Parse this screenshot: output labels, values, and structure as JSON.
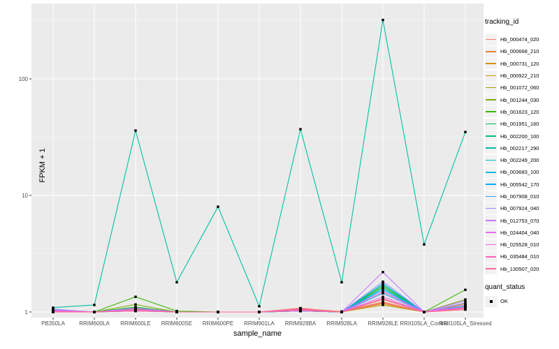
{
  "figure": {
    "background": "#FFFFFF",
    "panel_background": "#EBEBEB",
    "grid_major_color": "#FFFFFF",
    "grid_minor_color": "#F5F5F5",
    "axis_text_color": "#4D4D4D",
    "tick_mark_color": "#333333",
    "point_color": "#000000",
    "legend_key_fill": "#F2F2F2"
  },
  "legend": {
    "tracking_title": "tracking_id",
    "quant_title": "quant_status",
    "quant_items": [
      {
        "label": "OK",
        "symbol": "filled-square"
      }
    ]
  },
  "chart_data": {
    "type": "line",
    "title": "",
    "xlabel": "sample_name",
    "ylabel": "FPKM + 1",
    "y_scale": "log10",
    "y_ticks": [
      1,
      10,
      100
    ],
    "ylim": [
      0.9,
      450
    ],
    "grid": true,
    "legend_position": "right",
    "point_shape": "filled-square-black",
    "categories": [
      "PB350LA",
      "RRIM600LA",
      "RRIM600LE",
      "RRIM600SE",
      "RRIM600PE",
      "RRIM901LA",
      "RRIM928BA",
      "RRIM928LA",
      "RRIM928LE",
      "RRII105LA_Control",
      "RRII105LA_Stressed"
    ],
    "series": [
      {
        "name": "Hb_000474_020",
        "color": "#F8766D",
        "values": [
          1.03,
          1.0,
          1.07,
          1.0,
          1.0,
          1.0,
          1.08,
          1.0,
          1.28,
          1.0,
          1.06
        ]
      },
      {
        "name": "Hb_000668_210",
        "color": "#EA8331",
        "values": [
          1.0,
          1.0,
          1.05,
          1.0,
          1.0,
          1.0,
          1.07,
          1.01,
          1.22,
          1.0,
          1.1
        ]
      },
      {
        "name": "Hb_000731_120",
        "color": "#D89000",
        "values": [
          1.05,
          1.0,
          1.1,
          1.0,
          1.0,
          1.0,
          1.05,
          1.0,
          1.18,
          1.0,
          1.05
        ]
      },
      {
        "name": "Hb_000922_210",
        "color": "#C09B00",
        "values": [
          1.0,
          1.0,
          1.06,
          1.0,
          1.0,
          1.0,
          1.02,
          1.0,
          1.15,
          1.0,
          1.18
        ]
      },
      {
        "name": "Hb_001072_060",
        "color": "#A3A500",
        "values": [
          1.02,
          1.0,
          1.1,
          1.0,
          1.0,
          1.0,
          1.03,
          1.0,
          1.3,
          1.0,
          1.1
        ]
      },
      {
        "name": "Hb_001244_030",
        "color": "#7CAE00",
        "values": [
          1.0,
          1.0,
          1.16,
          1.0,
          1.0,
          1.0,
          1.02,
          1.0,
          1.45,
          1.0,
          1.28
        ]
      },
      {
        "name": "Hb_001623_120",
        "color": "#39B600",
        "values": [
          1.0,
          1.0,
          1.35,
          1.02,
          1.0,
          1.0,
          1.02,
          1.0,
          1.65,
          1.0,
          1.55
        ]
      },
      {
        "name": "Hb_001951_160",
        "color": "#00BB4E",
        "values": [
          1.05,
          1.0,
          1.1,
          1.0,
          1.0,
          1.0,
          1.02,
          1.0,
          1.6,
          1.0,
          1.15
        ]
      },
      {
        "name": "Hb_002200_100",
        "color": "#00BF7D",
        "values": [
          1.03,
          1.0,
          1.08,
          1.0,
          1.0,
          1.0,
          1.02,
          1.0,
          1.7,
          1.0,
          1.1
        ]
      },
      {
        "name": "Hb_002217_290",
        "color": "#00C1A3",
        "values": [
          1.09,
          1.15,
          36,
          1.8,
          8,
          1.12,
          37,
          1.8,
          320,
          3.8,
          35
        ]
      },
      {
        "name": "Hb_002249_200",
        "color": "#00BFC4",
        "values": [
          1.05,
          1.0,
          1.05,
          1.0,
          1.0,
          1.0,
          1.02,
          1.0,
          1.75,
          1.0,
          1.12
        ]
      },
      {
        "name": "Hb_003683_100",
        "color": "#00BAE0",
        "values": [
          1.02,
          1.0,
          1.02,
          1.0,
          1.0,
          1.0,
          1.02,
          1.0,
          1.6,
          1.0,
          1.1
        ]
      },
      {
        "name": "Hb_005542_170",
        "color": "#00B0F6",
        "values": [
          1.04,
          1.0,
          1.05,
          1.0,
          1.0,
          1.0,
          1.03,
          1.0,
          1.55,
          1.0,
          1.15
        ]
      },
      {
        "name": "Hb_007908_010",
        "color": "#35A2FF",
        "values": [
          1.03,
          1.0,
          1.02,
          1.0,
          1.0,
          1.0,
          1.02,
          1.0,
          1.45,
          1.0,
          1.1
        ]
      },
      {
        "name": "Hb_007924_040",
        "color": "#9590FF",
        "values": [
          1.06,
          1.0,
          1.05,
          1.0,
          1.0,
          1.0,
          1.02,
          1.0,
          1.82,
          1.0,
          1.2
        ]
      },
      {
        "name": "Hb_012753_070",
        "color": "#C77CFF",
        "values": [
          1.04,
          1.0,
          1.08,
          1.0,
          1.0,
          1.0,
          1.05,
          1.0,
          2.2,
          1.0,
          1.25
        ]
      },
      {
        "name": "Hb_024404_040",
        "color": "#E76BF3",
        "values": [
          1.03,
          1.0,
          1.05,
          1.0,
          1.0,
          1.0,
          1.04,
          1.0,
          1.35,
          1.0,
          1.15
        ]
      },
      {
        "name": "Hb_025528_010",
        "color": "#FA62DB",
        "values": [
          1.02,
          1.0,
          1.04,
          1.0,
          1.0,
          1.0,
          1.06,
          1.0,
          1.5,
          1.0,
          1.1
        ]
      },
      {
        "name": "Hb_035484_010",
        "color": "#FF62BC",
        "values": [
          1.0,
          1.0,
          1.03,
          1.0,
          1.0,
          1.0,
          1.05,
          1.0,
          1.3,
          1.0,
          1.08
        ]
      },
      {
        "name": "Hb_130507_020",
        "color": "#FF6A98",
        "values": [
          1.01,
          1.0,
          1.02,
          1.0,
          1.0,
          1.0,
          1.03,
          1.0,
          1.2,
          1.0,
          1.05
        ]
      }
    ]
  }
}
